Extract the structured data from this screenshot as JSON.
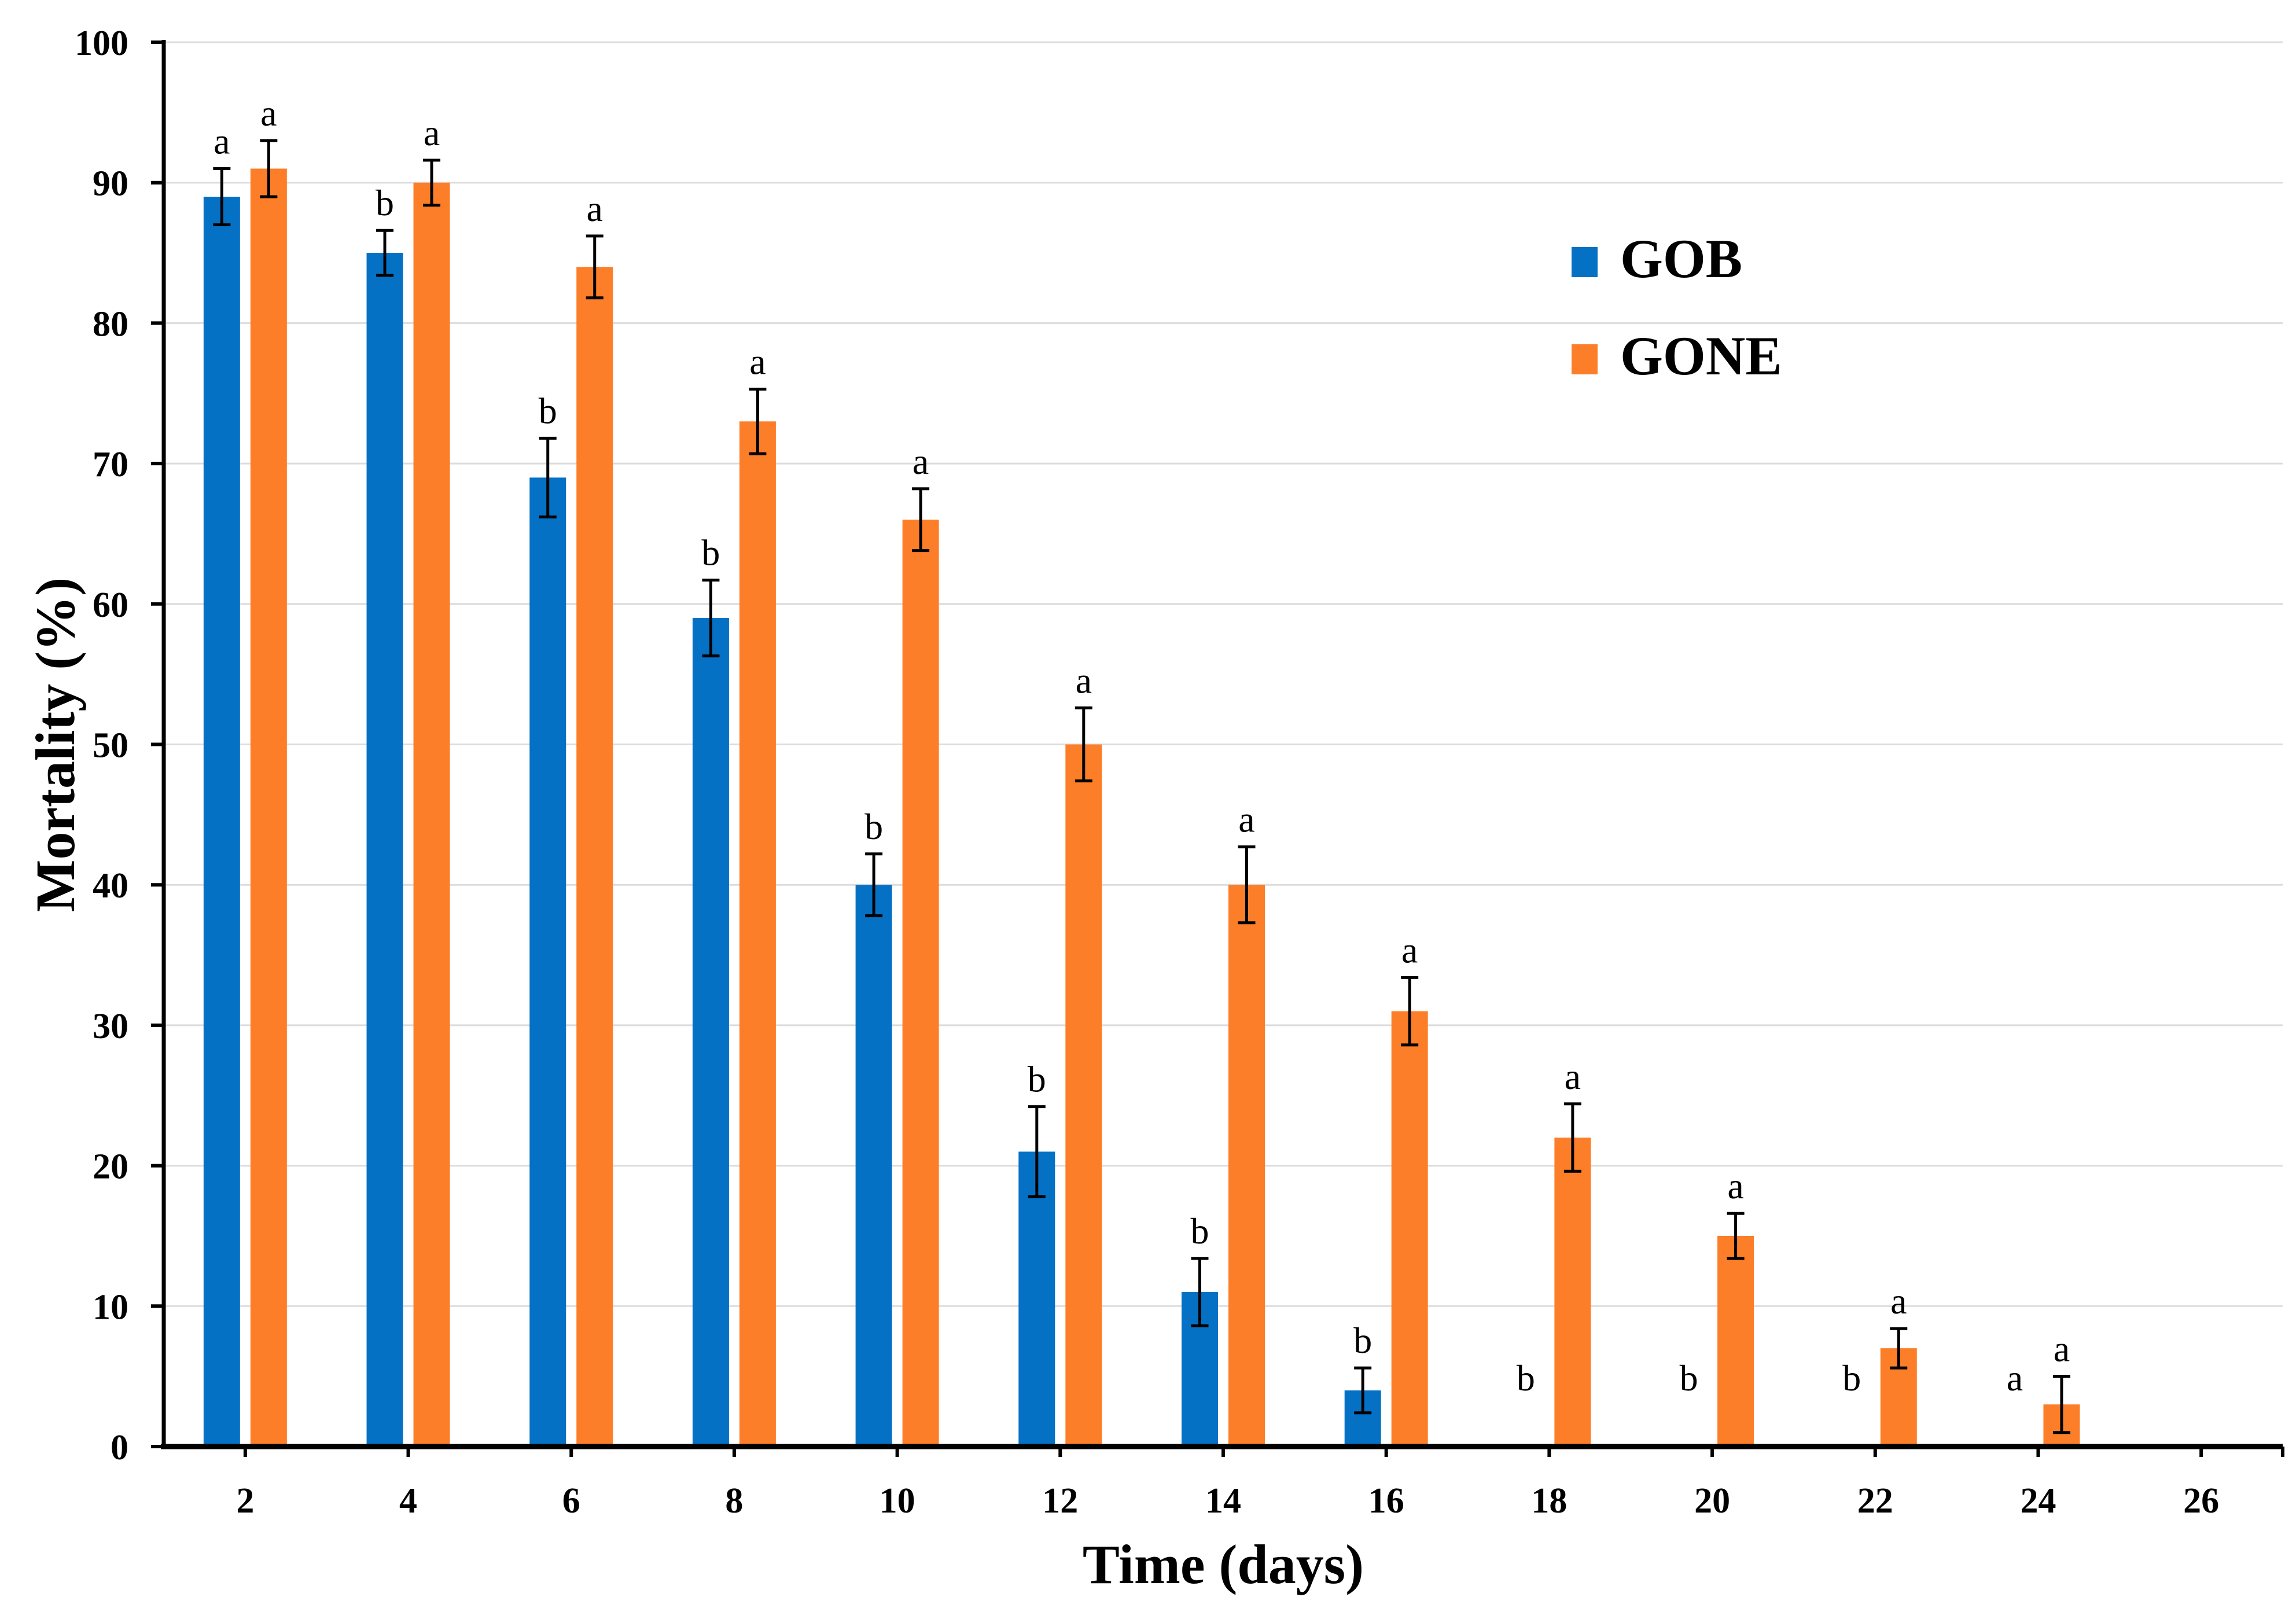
{
  "chart_data": {
    "type": "bar",
    "title": "",
    "xlabel": "Time (days)",
    "ylabel": "Mortality (%)",
    "categories": [
      "2",
      "4",
      "6",
      "8",
      "10",
      "12",
      "14",
      "16",
      "18",
      "20",
      "22",
      "24",
      "26"
    ],
    "series": [
      {
        "name": "GOB",
        "color": "#0571C5",
        "values": [
          89,
          85,
          69,
          59,
          40,
          21,
          11,
          4,
          0,
          0,
          0,
          0,
          null
        ],
        "errors": [
          2,
          1.6,
          2.8,
          2.7,
          2.2,
          3.2,
          2.4,
          1.6,
          0,
          0,
          0,
          0,
          null
        ],
        "letters": [
          "a",
          "b",
          "b",
          "b",
          "b",
          "b",
          "b",
          "b",
          "b",
          "b",
          "b",
          "a",
          ""
        ]
      },
      {
        "name": "GONE",
        "color": "#FD7E28",
        "values": [
          91,
          90,
          84,
          73,
          66,
          50,
          40,
          31,
          22,
          15,
          7,
          3,
          null
        ],
        "errors": [
          2,
          1.6,
          2.2,
          2.3,
          2.2,
          2.6,
          2.7,
          2.4,
          2.4,
          1.6,
          1.4,
          2,
          null
        ],
        "letters": [
          "a",
          "a",
          "a",
          "a",
          "a",
          "a",
          "a",
          "a",
          "a",
          "a",
          "a",
          "a",
          ""
        ]
      }
    ],
    "ylim": [
      0,
      100
    ],
    "yticks": [
      0,
      10,
      20,
      30,
      40,
      50,
      60,
      70,
      80,
      90,
      100
    ],
    "grid": "horizontal",
    "error_bars": true,
    "legend_position": "inside-upper-right",
    "axis_color": "#000000",
    "gridline_color": "#DCDCDC",
    "background": "#FFFFFF"
  }
}
